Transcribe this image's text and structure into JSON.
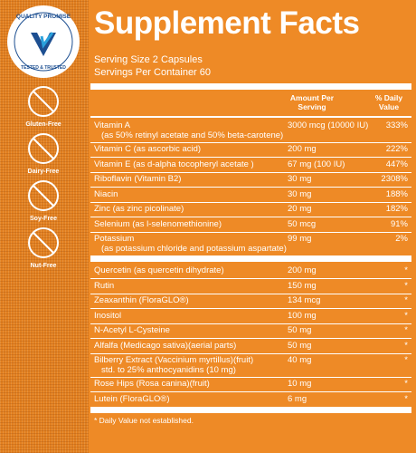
{
  "badges": {
    "quality": {
      "top": "QUALITY PROMISE",
      "bottom": "TESTED & TRUSTED"
    },
    "icons": [
      "Gluten-Free",
      "Dairy-Free",
      "Soy-Free",
      "Nut-Free"
    ]
  },
  "header": {
    "title": "Supplement Facts",
    "serving_size": "Serving Size 2 Capsules",
    "servings_per_container": "Servings Per Container 60"
  },
  "table": {
    "columns": [
      "Amount Per Serving",
      "% Daily Value"
    ],
    "sections": [
      {
        "rows": [
          {
            "name": "Vitamin A",
            "sub": "(as 50% retinyl acetate and 50% beta-carotene)",
            "amount": "3000 mcg (10000 IU)",
            "dv": "333%"
          },
          {
            "name": "Vitamin C (as ascorbic acid)",
            "amount": "200 mg",
            "dv": "222%"
          },
          {
            "name": "Vitamin E (as d-alpha tocopheryl acetate )",
            "amount": "67 mg (100 IU)",
            "dv": "447%"
          },
          {
            "name": "Riboflavin (Vitamin B2)",
            "amount": "30 mg",
            "dv": "2308%"
          },
          {
            "name": "Niacin",
            "amount": "30 mg",
            "dv": "188%"
          },
          {
            "name": "Zinc (as zinc picolinate)",
            "amount": "20 mg",
            "dv": "182%"
          },
          {
            "name": "Selenium (as l-selenomethionine)",
            "amount": "50 mcg",
            "dv": "91%"
          },
          {
            "name": "Potassium",
            "sub": "(as potassium chloride and potassium aspartate)",
            "amount": "99 mg",
            "dv": "2%"
          }
        ]
      },
      {
        "rows": [
          {
            "name": "Quercetin (as quercetin dihydrate)",
            "amount": "200 mg",
            "dv": "*"
          },
          {
            "name": "Rutin",
            "amount": "150 mg",
            "dv": "*"
          },
          {
            "name": "Zeaxanthin (FloraGLO®)",
            "amount": "134 mcg",
            "dv": "*"
          },
          {
            "name": "Inositol",
            "amount": "100 mg",
            "dv": "*"
          },
          {
            "name": "N-Acetyl L-Cysteine",
            "amount": "50 mg",
            "dv": "*"
          },
          {
            "name": "Alfalfa (Medicago sativa)(aerial parts)",
            "amount": "50 mg",
            "dv": "*"
          },
          {
            "name": "Bilberry Extract (Vaccinium myrtillus)(fruit)",
            "sub": "std. to 25% anthocyanidins (10 mg)",
            "amount": "40 mg",
            "dv": "*"
          },
          {
            "name": "Rose Hips (Rosa canina)(fruit)",
            "amount": "10 mg",
            "dv": "*"
          },
          {
            "name": "Lutein (FloraGLO®)",
            "amount": "6 mg",
            "dv": "*"
          }
        ]
      }
    ],
    "footnote": "* Daily Value not established."
  }
}
